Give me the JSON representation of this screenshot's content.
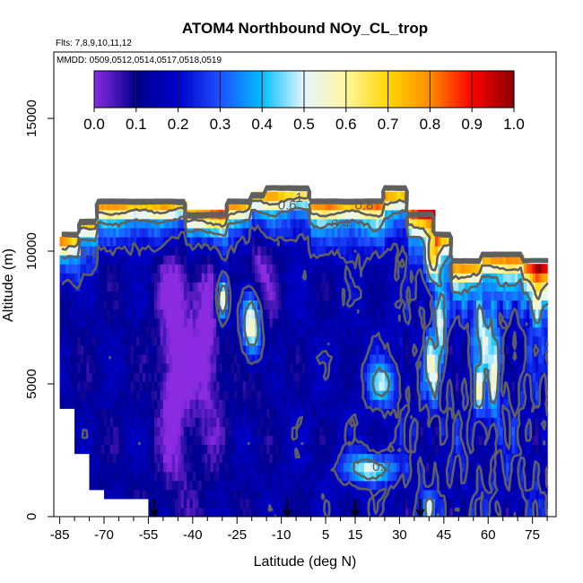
{
  "chart_data": {
    "type": "heatmap",
    "title": "ATOM4 Northbound NOy_CL_trop",
    "flights_note": "Flts: 7,8,9,10,11,12",
    "dates_note": "MMDD: 0509,0512,0514,0517,0518,0519",
    "xlabel": "Latitude (deg N)",
    "ylabel": "Altitude (m)",
    "xlim": [
      -87,
      83
    ],
    "ylim": [
      0,
      17500
    ],
    "x_ticks": [
      -85,
      -70,
      -55,
      -40,
      -25,
      -10,
      5,
      15,
      30,
      45,
      60,
      75
    ],
    "x_minor_ticks": [
      -80,
      -75,
      -65,
      -60,
      -50,
      -45,
      -35,
      -30,
      -20,
      -15,
      -5,
      0,
      10,
      20,
      25,
      35,
      40,
      50,
      55,
      65,
      70,
      80
    ],
    "y_ticks": [
      0,
      5000,
      10000,
      15000
    ],
    "colorbar": {
      "min": 0.0,
      "max": 1.0,
      "ticks": [
        "0.0",
        "0.1",
        "0.2",
        "0.3",
        "0.4",
        "0.5",
        "0.6",
        "0.7",
        "0.8",
        "0.9",
        "1.0"
      ],
      "colors": [
        "#8a2be2",
        "#00008b",
        "#0000cd",
        "#1e50ff",
        "#00bfff",
        "#e6f5ff",
        "#fff6a0",
        "#ffd700",
        "#ff8c00",
        "#ff0000",
        "#8b0000"
      ]
    },
    "contour_labels": [
      {
        "text": "1",
        "lat": -4,
        "alt": 12000
      },
      {
        "text": "0.6",
        "lat": -8,
        "alt": 11700
      },
      {
        "text": "0.8",
        "lat": 18,
        "alt": 11700
      },
      {
        "text": "0.4",
        "lat": 10,
        "alt": 11000
      },
      {
        "text": "0.8",
        "lat": -75,
        "alt": 9900
      },
      {
        "text": "0.2",
        "lat": 24,
        "alt": 1850
      }
    ],
    "flight_arrows_lat": [
      -53,
      -8,
      15,
      37
    ]
  }
}
